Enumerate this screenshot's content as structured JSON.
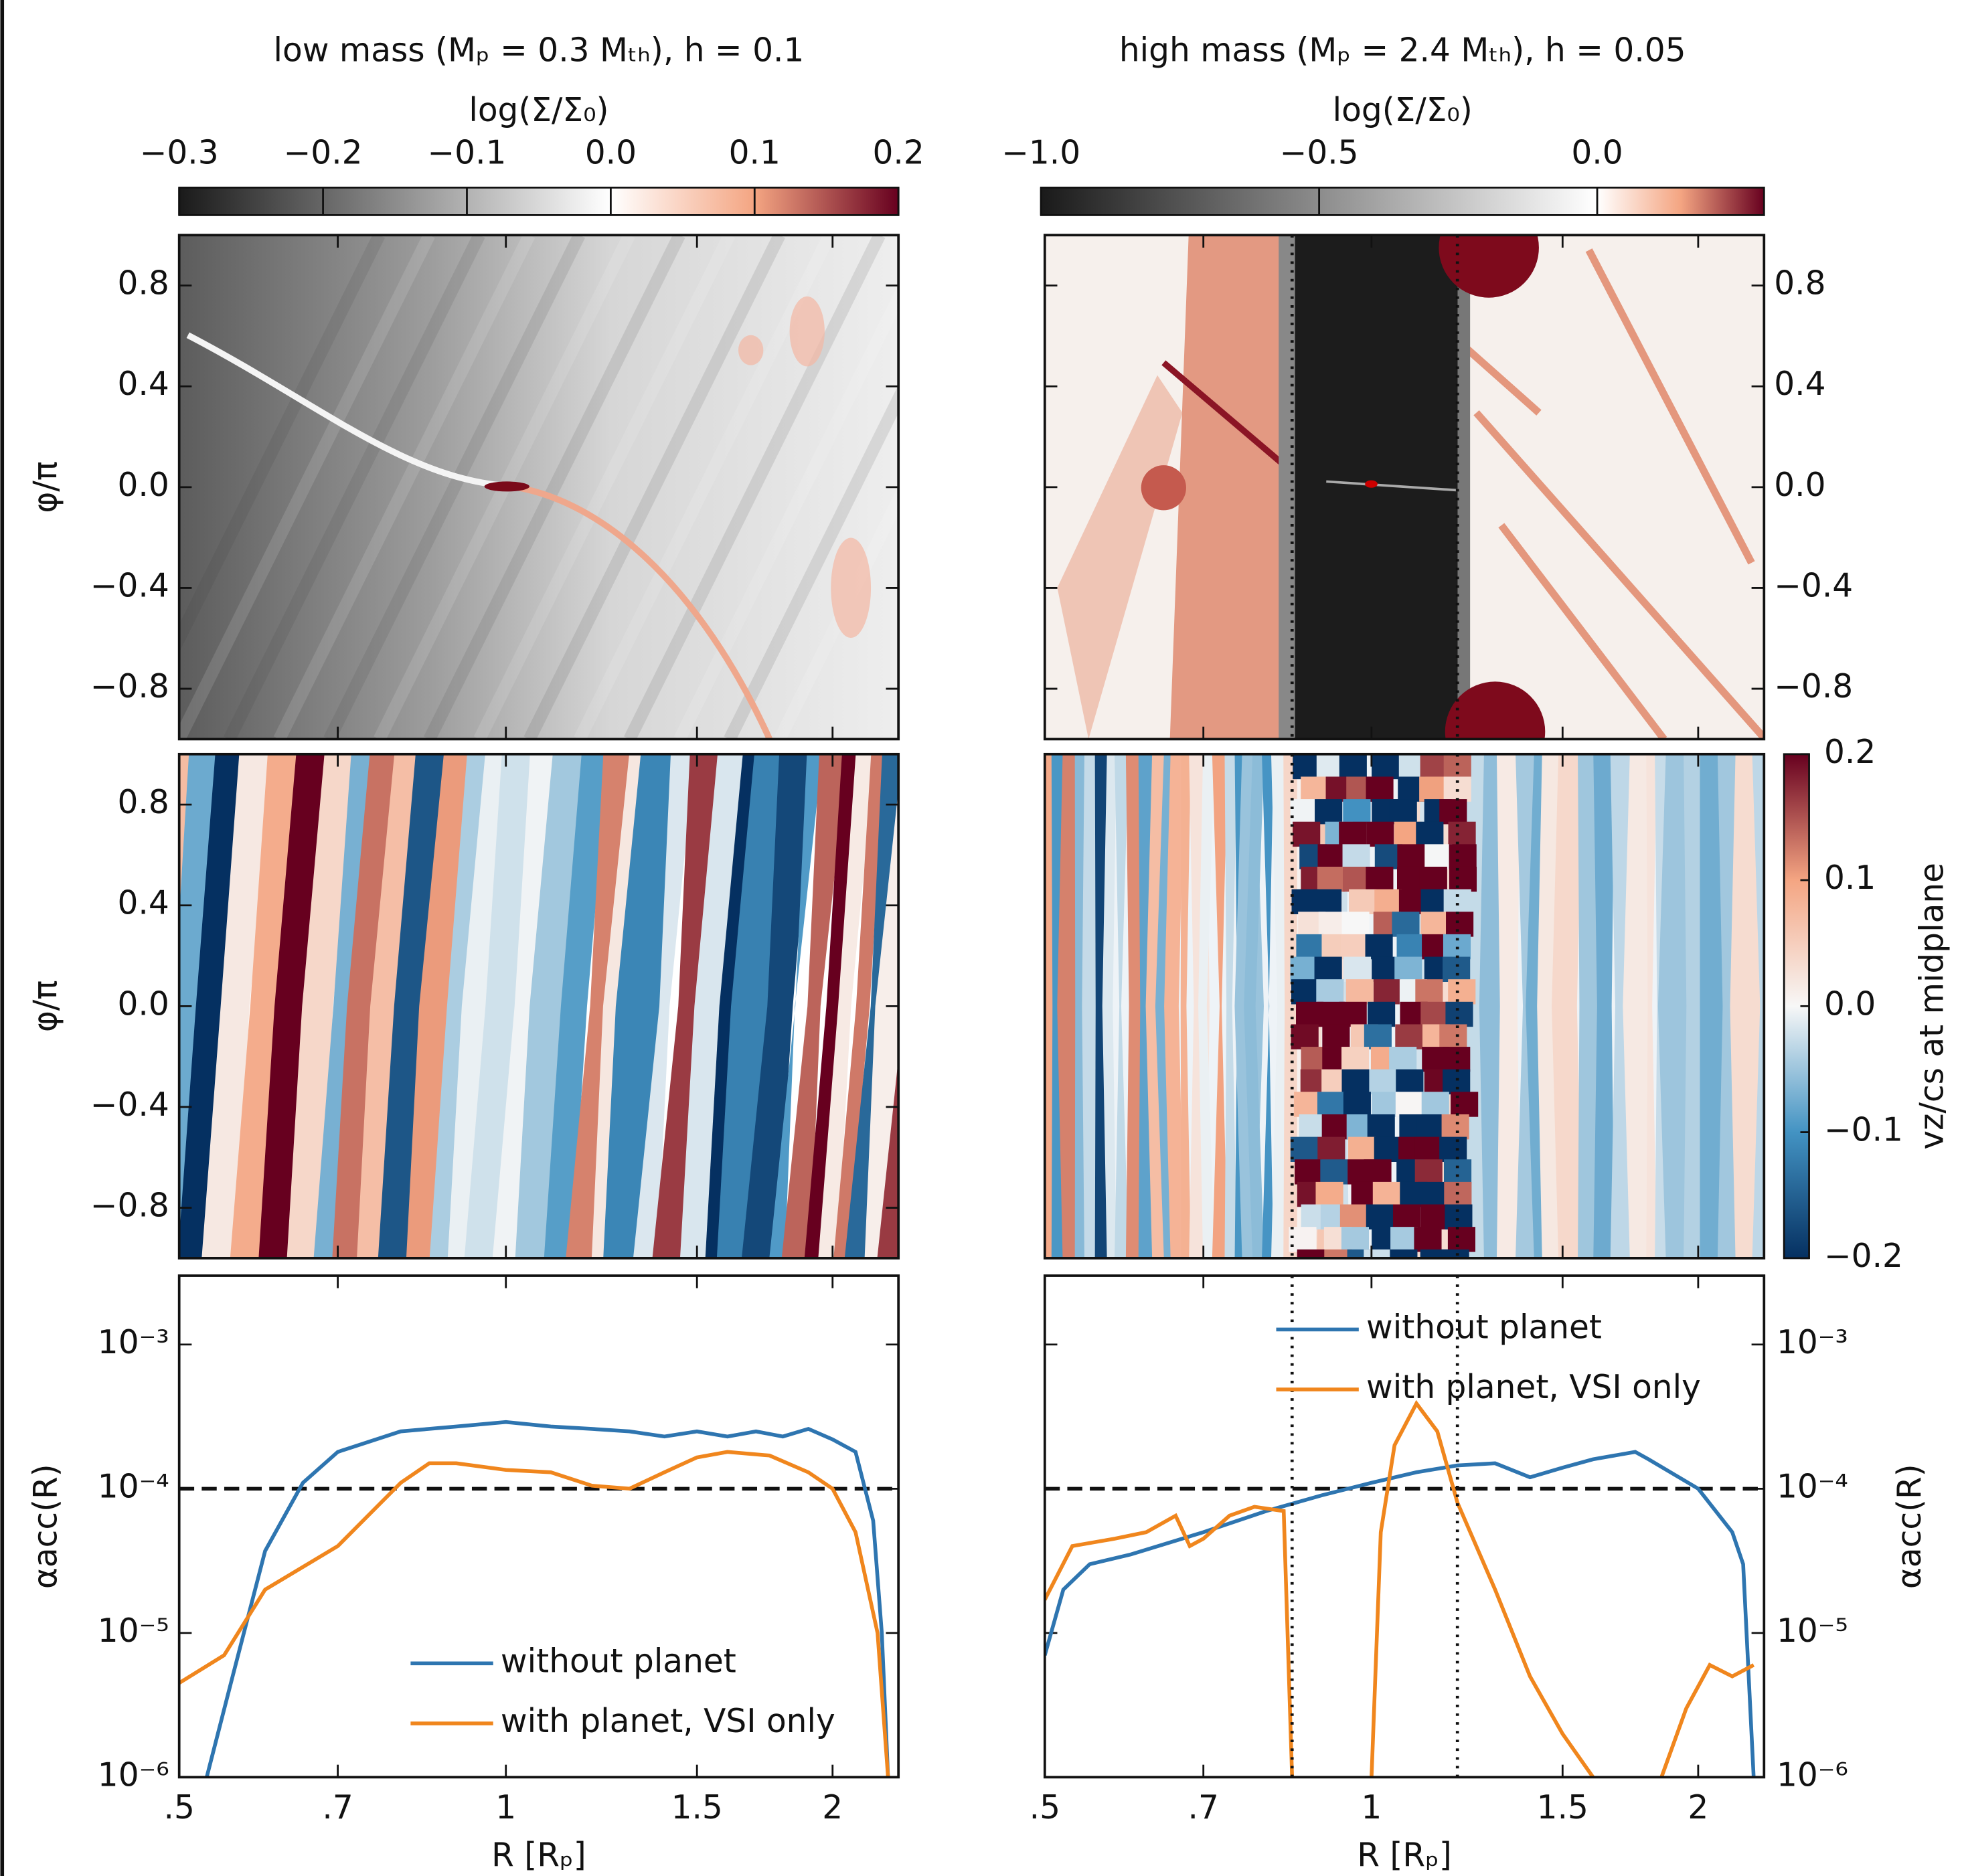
{
  "chart_data": [
    {
      "type": "colorbar",
      "orientation": "horizontal",
      "title": "low mass (Mₚ = 0.3 Mₜₕ), h = 0.1",
      "label": "log(Σ/Σ₀)",
      "lim": [
        -0.3,
        0.2
      ],
      "ticks": [
        {
          "value": -0.3,
          "label": "−0.3"
        },
        {
          "value": -0.2,
          "label": "−0.2"
        },
        {
          "value": -0.1,
          "label": "−0.1"
        },
        {
          "value": 0.0,
          "label": "0.0"
        },
        0.1,
        0.2
      ],
      "colors": [
        "#1a1a1a",
        "#8c8c8c",
        "#ffffff",
        "#f4a582",
        "#67001f"
      ]
    },
    {
      "type": "colorbar",
      "orientation": "horizontal",
      "title": "high mass (Mₚ = 2.4 Mₜₕ), h = 0.05",
      "label": "log(Σ/Σ₀)",
      "lim": [
        -1.0,
        0.3
      ],
      "ticks": [
        {
          "value": -1.0,
          "label": "−1.0"
        },
        {
          "value": -0.5,
          "label": "−0.5"
        },
        {
          "value": 0.0,
          "label": "0.0"
        }
      ],
      "colors": [
        "#1a1a1a",
        "#8c8c8c",
        "#ffffff",
        "#f4a582",
        "#67001f"
      ]
    },
    {
      "type": "heatmap",
      "ylabel": "φ/π",
      "ylim": [
        -1,
        1
      ],
      "yaxis": "left",
      "yticks": [
        {
          "value": -0.8,
          "label": "−0.8"
        },
        {
          "value": -0.4,
          "label": "−0.4"
        },
        {
          "value": 0.0,
          "label": "0.0"
        },
        0.4,
        0.8
      ]
    },
    {
      "type": "heatmap",
      "ylim": [
        -1,
        1
      ],
      "yaxis": "right",
      "vlines": [
        0.845,
        1.2
      ],
      "yticks": [
        {
          "value": -0.8,
          "label": "−0.8"
        },
        {
          "value": -0.4,
          "label": "−0.4"
        },
        {
          "value": 0.0,
          "label": "0.0"
        },
        0.4,
        0.8
      ]
    },
    {
      "type": "heatmap",
      "ylabel": "φ/π",
      "ylim": [
        -1,
        1
      ],
      "yaxis": "left",
      "yticks": [
        {
          "value": -0.8,
          "label": "−0.8"
        },
        {
          "value": -0.4,
          "label": "−0.4"
        },
        {
          "value": 0.0,
          "label": "0.0"
        },
        0.4,
        0.8
      ]
    },
    {
      "type": "heatmap",
      "ylim": [
        -1,
        1
      ],
      "yaxis": "none",
      "vlines": [
        0.845,
        1.2
      ]
    },
    {
      "type": "colorbar",
      "orientation": "vertical",
      "label": "vz/cs at midplane",
      "lim": [
        -0.2,
        0.2
      ],
      "ticks": [
        {
          "value": -0.2,
          "label": "−0.2"
        },
        {
          "value": -0.1,
          "label": "−0.1"
        },
        {
          "value": 0.0,
          "label": "0.0"
        },
        0.1,
        0.2
      ],
      "colors": [
        "#053061",
        "#4393c3",
        "#f7f7f7",
        "#f4a582",
        "#67001f"
      ]
    },
    {
      "type": "line",
      "xlabel": "R [Rₚ]",
      "ylabel": "αacc(R)",
      "yaxis": "left",
      "xscale": "log",
      "yscale": "log",
      "xlim": [
        0.5,
        2.3
      ],
      "xticks": [
        {
          "value": 0.5,
          "label": ".5"
        },
        {
          "value": 0.7,
          "label": ".7"
        },
        1,
        1.5,
        2
      ],
      "ylim": [
        1e-06,
        0.003
      ],
      "yticks": [
        {
          "value": 1e-06,
          "label": "10⁻⁶"
        },
        {
          "value": 1e-05,
          "label": "10⁻⁵"
        },
        {
          "value": 0.0001,
          "label": "10⁻⁴"
        },
        {
          "value": 0.001,
          "label": "10⁻³"
        }
      ],
      "hline": 0.0001,
      "legend": "lower right",
      "series": [
        {
          "name": "without planet",
          "color": "#2e75b0",
          "x": [
            0.53,
            0.56,
            0.6,
            0.65,
            0.7,
            0.8,
            0.9,
            1.0,
            1.1,
            1.2,
            1.3,
            1.4,
            1.5,
            1.6,
            1.7,
            1.8,
            1.9,
            2.0,
            2.1,
            2.18,
            2.22,
            2.25
          ],
          "values": [
            1e-06,
            5e-06,
            3.7e-05,
            0.00011,
            0.00018,
            0.00025,
            0.00027,
            0.00029,
            0.00027,
            0.00026,
            0.00025,
            0.00023,
            0.00025,
            0.00023,
            0.00025,
            0.00023,
            0.00026,
            0.00022,
            0.00018,
            6e-05,
            1e-05,
            1e-06
          ]
        },
        {
          "name": "with planet, VSI only",
          "color": "#f0861d",
          "x": [
            0.5,
            0.55,
            0.6,
            0.7,
            0.8,
            0.85,
            0.9,
            1.0,
            1.1,
            1.2,
            1.3,
            1.4,
            1.5,
            1.6,
            1.75,
            1.9,
            2.0,
            2.1,
            2.2,
            2.25
          ],
          "values": [
            4.5e-06,
            7e-06,
            2e-05,
            4e-05,
            0.00011,
            0.00015,
            0.00015,
            0.000135,
            0.00013,
            0.000105,
            0.0001,
            0.00013,
            0.000165,
            0.00018,
            0.00017,
            0.00013,
            0.0001,
            5e-05,
            1e-05,
            1e-06
          ]
        }
      ]
    },
    {
      "type": "line",
      "xlabel": "R [Rₚ]",
      "ylabel": "αacc(R)",
      "yaxis": "right",
      "xscale": "log",
      "yscale": "log",
      "xlim": [
        0.5,
        2.3
      ],
      "xticks": [
        {
          "value": 0.5,
          "label": ".5"
        },
        {
          "value": 0.7,
          "label": ".7"
        },
        1,
        1.5,
        2
      ],
      "ylim": [
        1e-06,
        0.003
      ],
      "yticks": [
        {
          "value": 1e-06,
          "label": "10⁻⁶"
        },
        {
          "value": 1e-05,
          "label": "10⁻⁵"
        },
        {
          "value": 0.0001,
          "label": "10⁻⁴"
        },
        {
          "value": 0.001,
          "label": "10⁻³"
        }
      ],
      "hline": 0.0001,
      "vlines": [
        0.845,
        1.2
      ],
      "legend": "upper center",
      "series": [
        {
          "name": "without planet",
          "color": "#2e75b0",
          "x": [
            0.5,
            0.52,
            0.55,
            0.6,
            0.7,
            0.8,
            0.9,
            1.0,
            1.1,
            1.2,
            1.3,
            1.4,
            1.5,
            1.6,
            1.75,
            1.8,
            2.0,
            2.15,
            2.2,
            2.25
          ],
          "values": [
            7e-06,
            2e-05,
            3e-05,
            3.5e-05,
            5e-05,
            7e-05,
            9e-05,
            0.00011,
            0.00013,
            0.000145,
            0.00015,
            0.00012,
            0.00014,
            0.00016,
            0.00018,
            0.00016,
            0.0001,
            5e-05,
            3e-05,
            1e-06
          ]
        },
        {
          "name": "with planet, VSI only",
          "color": "#f0861d",
          "x": [
            0.5,
            0.53,
            0.58,
            0.62,
            0.66,
            0.68,
            0.7,
            0.74,
            0.78,
            0.83,
            0.845,
            0.9,
            1.0,
            1.02,
            1.05,
            1.1,
            1.15,
            1.2,
            1.3,
            1.4,
            1.5,
            1.6,
            1.7,
            1.85,
            1.95,
            2.05,
            2.15,
            2.25
          ],
          "values": [
            1.7e-05,
            4e-05,
            4.5e-05,
            5e-05,
            6.5e-05,
            4e-05,
            4.5e-05,
            6.5e-05,
            7.5e-05,
            7e-05,
            1e-06,
            null,
            1e-06,
            5e-05,
            0.0002,
            0.00039,
            0.00025,
            8e-05,
            2e-05,
            5e-06,
            2e-06,
            1e-06,
            null,
            1e-06,
            3e-06,
            6e-06,
            5e-06,
            6e-06
          ]
        }
      ]
    }
  ]
}
